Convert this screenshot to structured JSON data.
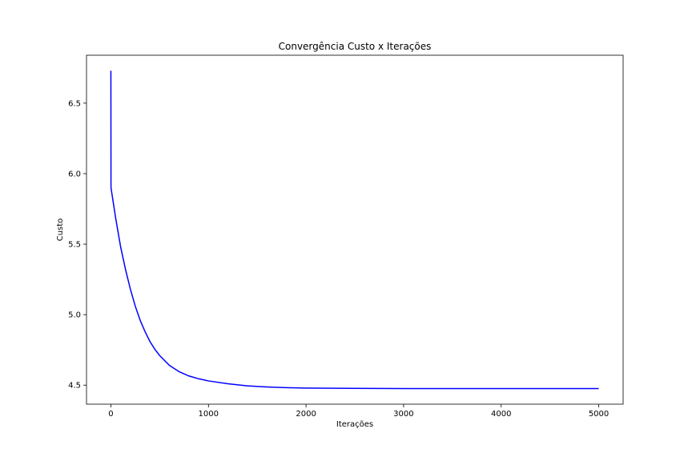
{
  "chart_data": {
    "type": "line",
    "title": "Convergência Custo x Iterações",
    "xlabel": "Iterações",
    "ylabel": "Custo",
    "xlim": [
      -250,
      5250
    ],
    "ylim": [
      4.365,
      6.84
    ],
    "xticks": [
      0,
      1000,
      2000,
      3000,
      4000,
      5000
    ],
    "xtick_labels": [
      "0",
      "1000",
      "2000",
      "3000",
      "4000",
      "5000"
    ],
    "yticks": [
      4.5,
      5.0,
      5.5,
      6.0,
      6.5
    ],
    "ytick_labels": [
      "4.5",
      "5.0",
      "5.5",
      "6.0",
      "6.5"
    ],
    "grid": false,
    "series": [
      {
        "color": "#0000ff",
        "x": [
          0,
          1,
          50,
          100,
          150,
          200,
          250,
          300,
          350,
          400,
          450,
          500,
          600,
          700,
          800,
          900,
          1000,
          1200,
          1400,
          1600,
          1800,
          2000,
          2500,
          3000,
          3500,
          4000,
          4500,
          5000
        ],
        "y": [
          6.73,
          5.9,
          5.68,
          5.48,
          5.32,
          5.18,
          5.06,
          4.96,
          4.88,
          4.81,
          4.755,
          4.71,
          4.64,
          4.595,
          4.565,
          4.545,
          4.53,
          4.51,
          4.495,
          4.487,
          4.482,
          4.479,
          4.477,
          4.476,
          4.476,
          4.476,
          4.476,
          4.476
        ]
      }
    ]
  }
}
